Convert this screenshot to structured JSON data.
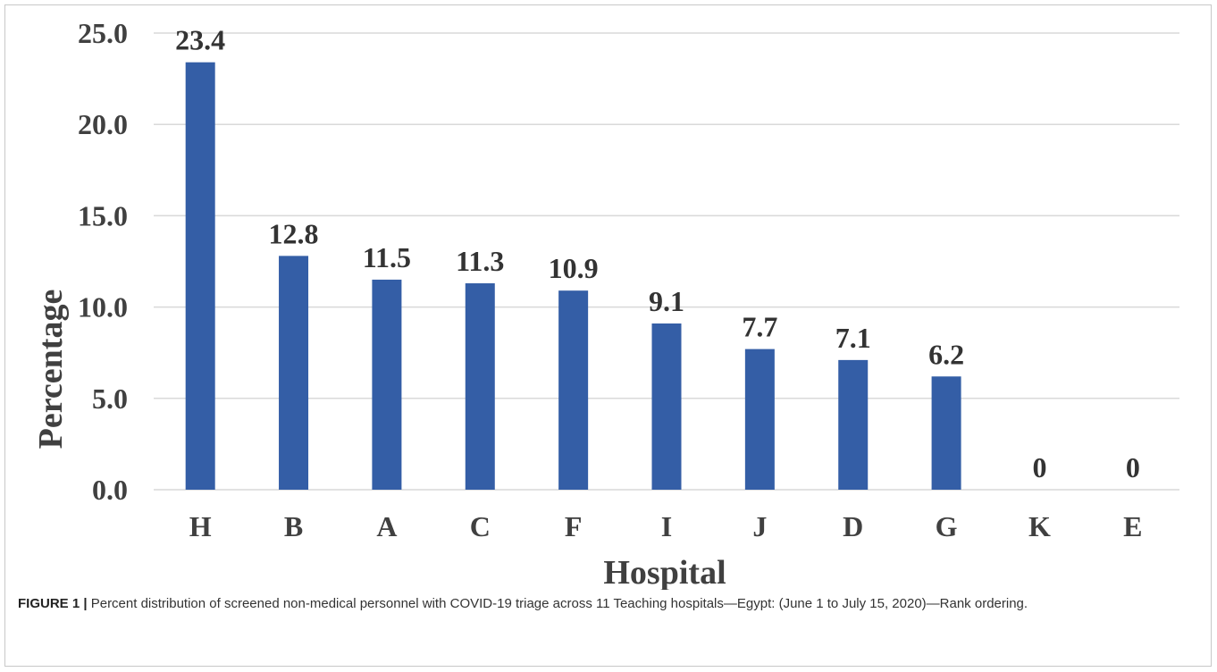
{
  "chart_data": {
    "type": "bar",
    "categories": [
      "H",
      "B",
      "A",
      "C",
      "F",
      "I",
      "J",
      "D",
      "G",
      "K",
      "E"
    ],
    "values": [
      23.4,
      12.8,
      11.5,
      11.3,
      10.9,
      9.1,
      7.7,
      7.1,
      6.2,
      0,
      0
    ],
    "data_labels": [
      "23.4",
      "12.8",
      "11.5",
      "11.3",
      "10.9",
      "9.1",
      "7.7",
      "7.1",
      "6.2",
      "0",
      "0"
    ],
    "title": "",
    "xlabel": "Hospital",
    "ylabel": "Percentage",
    "ylim": [
      0,
      25
    ],
    "yticks": [
      "0.0",
      "5.0",
      "10.0",
      "15.0",
      "20.0",
      "25.0"
    ],
    "grid": true,
    "bar_color": "#345ea6",
    "grid_color": "#d9d9d9"
  },
  "caption": {
    "label": "FIGURE 1 |",
    "text": "Percent distribution of screened non-medical personnel with COVID-19 triage across 11 Teaching hospitals—Egypt: (June 1 to July 15, 2020)—Rank ordering."
  }
}
